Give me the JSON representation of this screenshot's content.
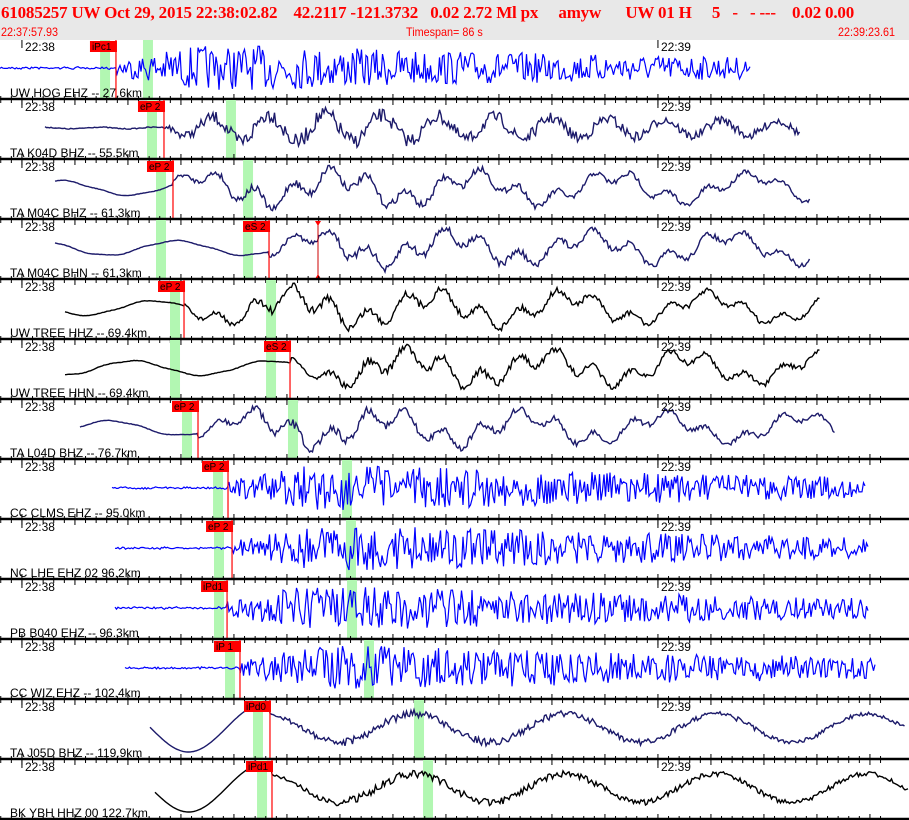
{
  "header": {
    "title": "61085257 UW Oct 29, 2015 22:38:02.82    42.2117 -121.3732   0.02 2.72 Ml px     amyw      UW 01 H     5   -   - ---    0.02 0.00",
    "start_time": "22:37:57.93",
    "timespan": "Timespan=  86 s",
    "end_time": "22:39:23.61"
  },
  "chart_data": {
    "type": "line",
    "x_axis": {
      "start": "22:37:57.93",
      "end": "22:39:23.61",
      "tick_labels": [
        "22:38",
        "22:39"
      ]
    },
    "colors": {
      "pick": "#ff0000",
      "predicted": "#b2f7b2",
      "blue": "#0000ff",
      "navy": "#1c1a6a",
      "black": "#000000"
    },
    "traces": [
      {
        "label": "UW HOG EHZ -- 27.6km",
        "color": "#0000ff",
        "pick_label": "iPc1",
        "pick_time": "22:38:08.87",
        "predicted": [
          "22:38:07.84",
          "22:38:11.89"
        ]
      },
      {
        "label": "TA K04D BHZ -- 55.5km",
        "color": "#1c1a6a",
        "pick_label": "eP 2",
        "pick_time": "22:38:13.40",
        "predicted": [
          "22:38:12.27",
          "22:38:19.72"
        ]
      },
      {
        "label": "TA M04C BHZ -- 61.3km",
        "color": "#1c1a6a",
        "pick_label": "eP 2",
        "pick_time": "22:38:14.25",
        "predicted": [
          "22:38:13.12",
          "22:38:21.33"
        ]
      },
      {
        "label": "TA M04C BHN -- 61.3km",
        "color": "#1c1a6a",
        "pick_label": "eS 2",
        "pick_time": "22:38:23.31",
        "predicted": [
          "22:38:13.12",
          "22:38:21.33"
        ],
        "marker_time": "22:38:27.93"
      },
      {
        "label": "UW TREE HHZ -- 69.4km",
        "color": "#000000",
        "pick_label": "eP 2",
        "pick_time": "22:38:15.29",
        "predicted": [
          "22:38:14.44",
          "22:38:23.50"
        ]
      },
      {
        "label": "UW TREE HHN -- 69.4km",
        "color": "#000000",
        "pick_label": "eS 2",
        "pick_time": "22:38:25.29",
        "predicted": [
          "22:38:14.44",
          "22:38:23.50"
        ]
      },
      {
        "label": "TA L04D BHZ -- 76.7km",
        "color": "#1c1a6a",
        "pick_label": "eP 2",
        "pick_time": "22:38:16.61",
        "predicted": [
          "22:38:15.57",
          "22:38:25.57"
        ]
      },
      {
        "label": "CC CLMS EHZ -- 95.0km",
        "color": "#0000ff",
        "pick_label": "eP 2",
        "pick_time": "22:38:19.44",
        "predicted": [
          "22:38:18.50",
          "22:38:30.67"
        ]
      },
      {
        "label": "NC LHE EHZ 02 96.2km",
        "color": "#0000ff",
        "pick_label": "eP 2",
        "pick_time": "22:38:19.82",
        "predicted": [
          "22:38:18.59",
          "22:38:31.04"
        ]
      },
      {
        "label": "PB B040 EHZ -- 96.3km",
        "color": "#0000ff",
        "pick_label": "iPd1",
        "pick_time": "22:38:19.35",
        "predicted": [
          "22:38:18.59",
          "22:38:31.14"
        ]
      },
      {
        "label": "CC WIZ EHZ -- 102.4km",
        "color": "#0000ff",
        "pick_label": "iP 1",
        "pick_time": "22:38:20.57",
        "predicted": [
          "22:38:19.63",
          "22:38:32.74"
        ]
      },
      {
        "label": "TA J05D BHZ -- 119.9km",
        "color": "#1c1a6a",
        "pick_label": "iPd0",
        "pick_time": "22:38:23.40",
        "predicted": [
          "22:38:22.27",
          "22:38:37.46"
        ]
      },
      {
        "label": "BK YBH HHZ 00 122.7km",
        "color": "#000000",
        "pick_label": "iPd1",
        "pick_time": "22:38:23.59",
        "predicted": [
          "22:38:22.65",
          "22:38:38.31"
        ]
      }
    ]
  }
}
